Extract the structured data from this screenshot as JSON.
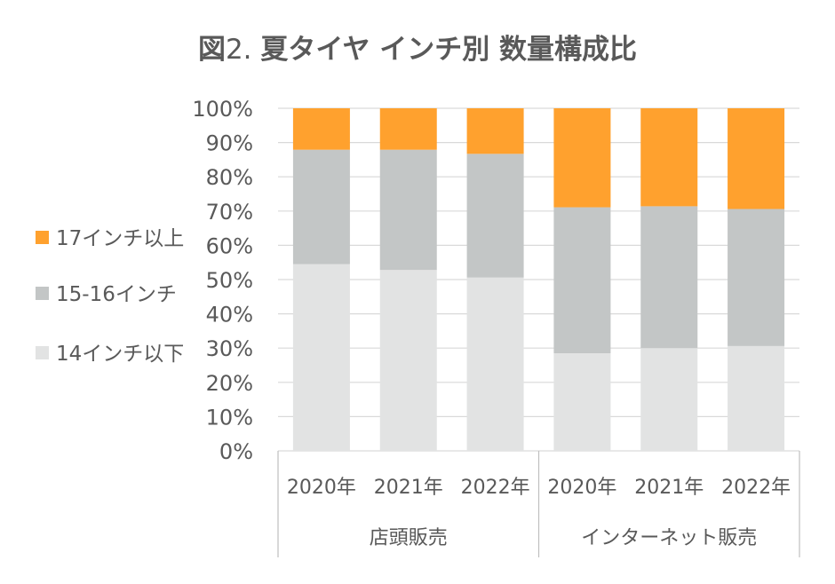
{
  "title": {
    "prefix": "図",
    "number": "2. ",
    "main": "夏タイヤ インチ別 数量構成比"
  },
  "chart_data": {
    "type": "bar",
    "stacked": true,
    "percent_stacked": true,
    "categories": [
      "2020年",
      "2021年",
      "2022年",
      "2020年",
      "2021年",
      "2022年"
    ],
    "groups": [
      {
        "label": "店頭販売",
        "categories": [
          "2020年",
          "2021年",
          "2022年"
        ]
      },
      {
        "label": "インターネット販売",
        "categories": [
          "2020年",
          "2021年",
          "2022年"
        ]
      }
    ],
    "series": [
      {
        "name": "14インチ以下",
        "color": "#e2e3e3",
        "values": [
          54.5,
          52.8,
          50.6,
          28.5,
          30.0,
          30.6
        ]
      },
      {
        "name": "15-16インチ",
        "color": "#c3c6c6",
        "values": [
          33.4,
          35.1,
          36.1,
          42.6,
          41.4,
          40.0
        ]
      },
      {
        "name": "17インチ以上",
        "color": "#ffa12e",
        "values": [
          12.1,
          12.1,
          13.3,
          28.9,
          28.6,
          29.4
        ]
      }
    ],
    "ylim": [
      0,
      100
    ],
    "yticks": [
      "0%",
      "10%",
      "20%",
      "30%",
      "40%",
      "50%",
      "60%",
      "70%",
      "80%",
      "90%",
      "100%"
    ],
    "grid": true,
    "legend_position": "left"
  }
}
